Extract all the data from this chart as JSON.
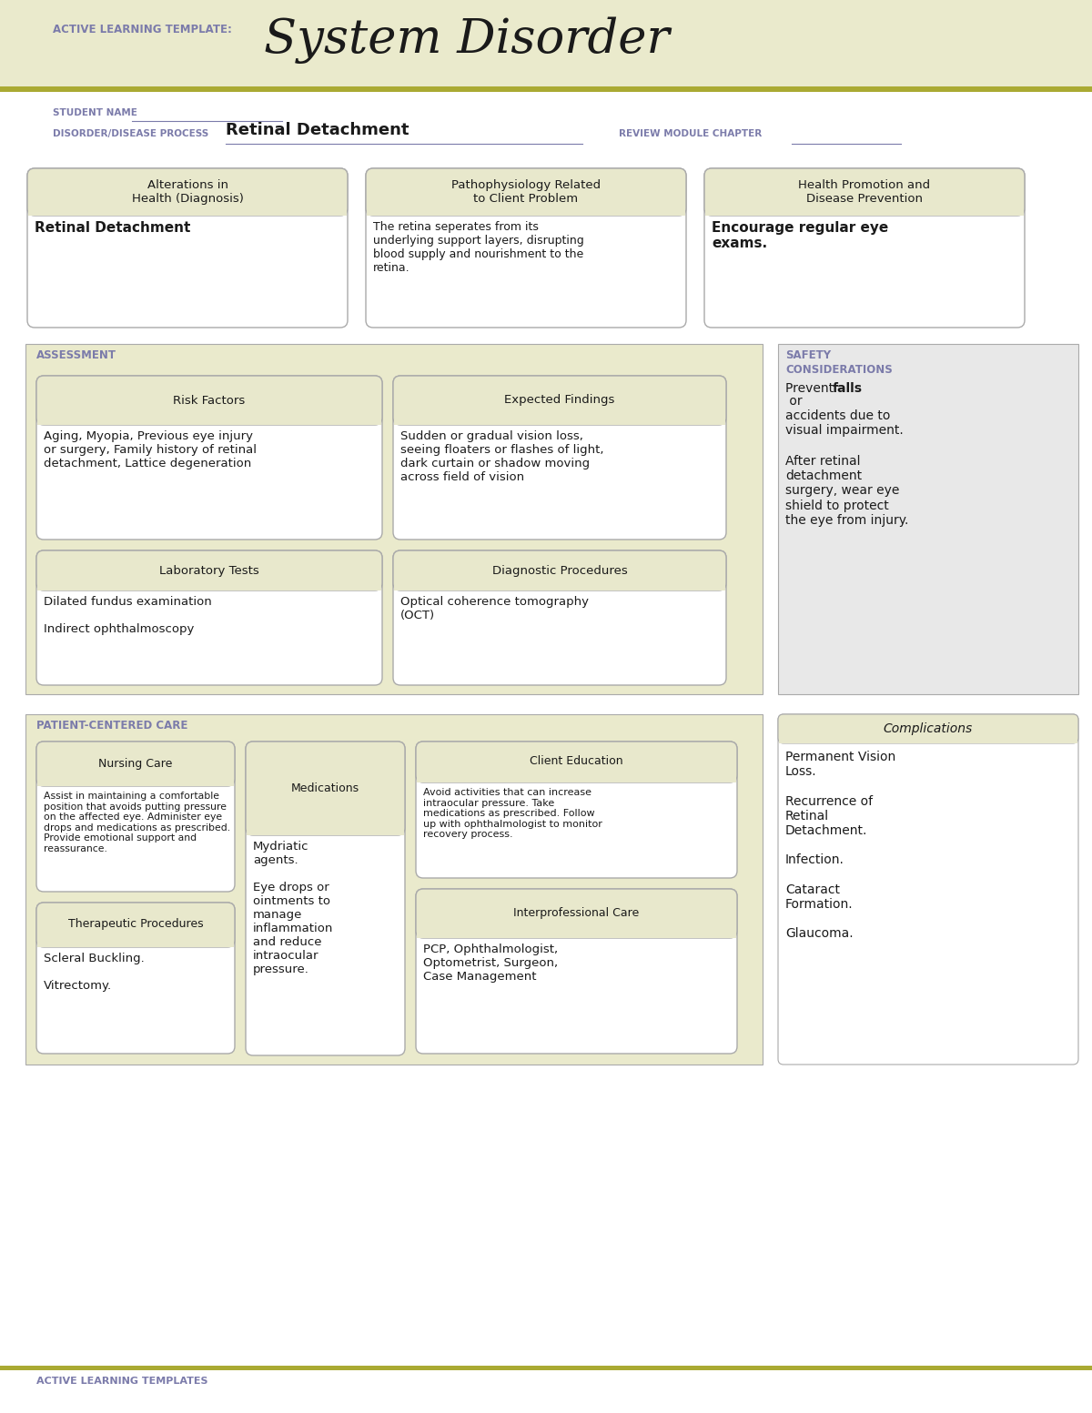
{
  "header_bg": "#EAEACC",
  "white_bg": "#FFFFFF",
  "card_title_bg": "#E8E8CC",
  "assess_bg": "#EAEACC",
  "gray_section_bg": "#E8E8E8",
  "border_color": "#AAAAAA",
  "olive_line": "#AAAA33",
  "purple_label": "#7B7BAA",
  "black_text": "#1A1A1A",
  "title_system": "System Disorder",
  "title_template": "ACTIVE LEARNING TEMPLATE:",
  "student_name_label": "STUDENT NAME",
  "disorder_label": "DISORDER/DISEASE PROCESS",
  "disorder_value": "Retinal Detachment",
  "review_label": "REVIEW MODULE CHAPTER",
  "box1_title": "Alterations in\nHealth (Diagnosis)",
  "box1_content": "Retinal Detachment",
  "box2_title": "Pathophysiology Related\nto Client Problem",
  "box2_content": "The retina seperates from its\nunderlying support layers, disrupting\nblood supply and nourishment to the\nretina.",
  "box3_title": "Health Promotion and\nDisease Prevention",
  "box3_content": "Encourage regular eye\nexams.",
  "assessment_label": "ASSESSMENT",
  "risk_title": "Risk Factors",
  "risk_content": "Aging, Myopia, Previous eye injury\nor surgery, Family history of retinal\ndetachment, Lattice degeneration",
  "findings_title": "Expected Findings",
  "findings_content": "Sudden or gradual vision loss,\nseeing floaters or flashes of light,\ndark curtain or shadow moving\nacross field of vision",
  "safety_title1": "SAFETY",
  "safety_title2": "CONSIDERATIONS",
  "safety_content1": "Prevent ",
  "safety_bold1": "falls",
  "safety_after1": " or\naccidents due to\nvisual impairment.",
  "safety_content2": "After retinal\ndetachment\nsurgery, wear eye\nshield to protect\nthe eye from injury.",
  "lab_title": "Laboratory Tests",
  "lab_content": "Dilated fundus examination\n\nIndirect ophthalmoscopy",
  "diag_title": "Diagnostic Procedures",
  "diag_content": "Optical coherence tomography\n(OCT)",
  "patient_label": "PATIENT-CENTERED CARE",
  "nursing_title": "Nursing Care",
  "nursing_content": "Assist in maintaining a comfortable\nposition that avoids putting pressure\non the affected eye. Administer eye\ndrops and medications as prescribed.\nProvide emotional support and\nreassurance.",
  "med_title": "Medications",
  "med_content": "Mydriatic\nagents.\n\nEye drops or\nointments to\nmanage\ninflammation\nand reduce\nintraocular\npressure.",
  "edu_title": "Client Education",
  "edu_content": "Avoid activities that can increase\nintraocular pressure. Take\nmedications as prescribed. Follow\nup with ophthalmologist to monitor\nrecovery process.",
  "therapeutic_title": "Therapeutic Procedures",
  "therapeutic_content": "Scleral Buckling.\n\nVitrectomy.",
  "interpro_title": "Interprofessional Care",
  "interpro_content": "PCP, Ophthalmologist,\nOptometrist, Surgeon,\nCase Management",
  "complications_title": "Complications",
  "complications_content": "Permanent Vision\nLoss.\n\nRecurrence of\nRetinal\nDetachment.\n\nInfection.\n\nCataract\nFormation.\n\nGlaucoma.",
  "footer": "ACTIVE LEARNING TEMPLATES"
}
